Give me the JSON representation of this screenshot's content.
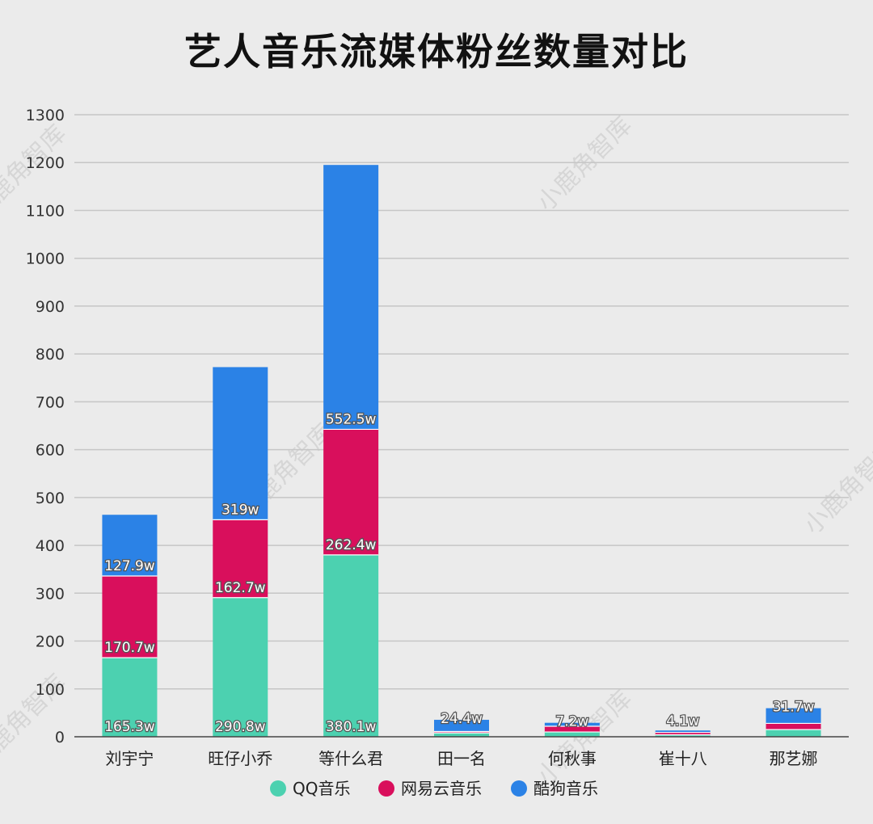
{
  "chart_data": {
    "type": "bar",
    "stacked": true,
    "title": "艺人音乐流媒体粉丝数量对比",
    "categories": [
      "刘宇宁",
      "旺仔小乔",
      "等什么君",
      "田一名",
      "何秋事",
      "崔十八",
      "那艺娜"
    ],
    "series": [
      {
        "name": "QQ音乐",
        "color": "#4cd1b0",
        "values": [
          165.3,
          290.8,
          380.1,
          8,
          10,
          4,
          15
        ]
      },
      {
        "name": "网易云音乐",
        "color": "#d90f5c",
        "values": [
          170.7,
          162.7,
          262.4,
          3,
          12,
          5,
          13
        ]
      },
      {
        "name": "酷狗音乐",
        "color": "#2b82e6",
        "values": [
          127.9,
          319,
          552.5,
          24.4,
          7.2,
          4.1,
          31.7
        ]
      }
    ],
    "data_labels": [
      [
        "165.3w",
        "290.8w",
        "380.1w",
        "",
        "",
        "",
        ""
      ],
      [
        "170.7w",
        "162.7w",
        "262.4w",
        "",
        "",
        "",
        ""
      ],
      [
        "127.9w",
        "319w",
        "552.5w",
        "24.4w",
        "7.2w",
        "4.1w",
        "31.7w"
      ]
    ],
    "ylim": [
      0,
      1300
    ],
    "yticks": [
      0,
      100,
      200,
      300,
      400,
      500,
      600,
      700,
      800,
      900,
      1000,
      1100,
      1200,
      1300
    ],
    "grid": true,
    "legend_position": "bottom",
    "watermark": "小鹿角智库"
  }
}
